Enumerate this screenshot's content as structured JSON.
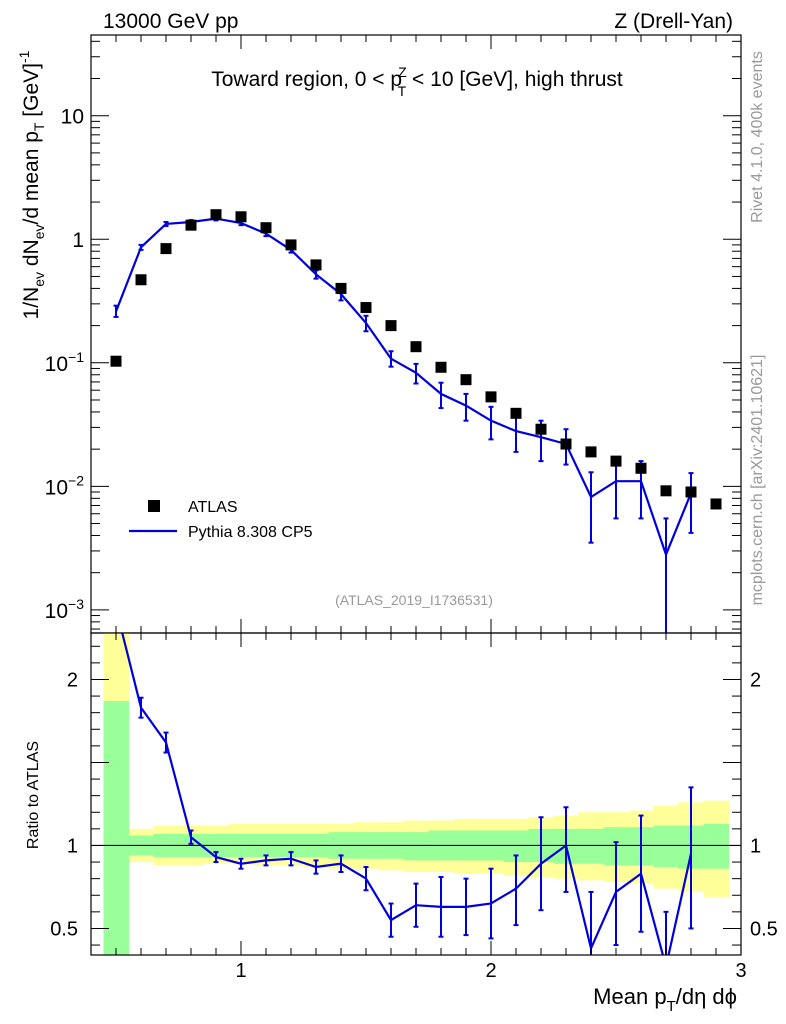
{
  "header": {
    "energy_label": "13000 GeV pp",
    "process_label": "Z (Drell-Yan)"
  },
  "side_labels": {
    "rivet": "Rivet 4.1.0,  400k events",
    "mcplots": "mcplots.cern.ch [arXiv:2401.10621]"
  },
  "colors": {
    "data": "#000000",
    "mc": "#0000dd",
    "band_inner": "#99ff99",
    "band_outer": "#ffff99"
  },
  "chart_data": [
    {
      "type": "scatter",
      "title": {
        "prefix": "Toward region, 0 < p",
        "sup": "Z",
        "sub": "T",
        "suffix": " < 10 [GeV], high thrust"
      },
      "ylabel": {
        "p1": "1/N",
        "s1": "ev",
        "p2": " dN",
        "s2": "ev",
        "p3": "/d mean p",
        "s3": "T",
        "p4": " [GeV]",
        "sup": "-1"
      },
      "yscale": "log",
      "ylim": [
        0.00065,
        45
      ],
      "xlim": [
        0.4,
        3.0
      ],
      "y_ticks": [
        {
          "v": 10,
          "base": "10",
          "exp": ""
        },
        {
          "v": 1,
          "base": "1",
          "exp": ""
        },
        {
          "v": 0.1,
          "base": "10",
          "exp": "−1"
        },
        {
          "v": 0.01,
          "base": "10",
          "exp": "−2"
        },
        {
          "v": 0.001,
          "base": "10",
          "exp": "−3"
        }
      ],
      "legend": [
        {
          "label": "ATLAS",
          "marker": "square"
        },
        {
          "label": "Pythia 8.308 CP5",
          "marker": "line"
        }
      ],
      "watermark": "(ATLAS_2019_I1736531)",
      "series": [
        {
          "name": "ATLAS",
          "x": [
            0.5,
            0.6,
            0.7,
            0.8,
            0.9,
            1.0,
            1.1,
            1.2,
            1.3,
            1.4,
            1.5,
            1.6,
            1.7,
            1.8,
            1.9,
            2.0,
            2.1,
            2.2,
            2.3,
            2.4,
            2.5,
            2.6,
            2.7,
            2.8,
            2.9
          ],
          "y": [
            0.103,
            0.47,
            0.84,
            1.3,
            1.58,
            1.52,
            1.24,
            0.9,
            0.62,
            0.4,
            0.28,
            0.2,
            0.135,
            0.092,
            0.073,
            0.053,
            0.039,
            0.029,
            0.022,
            0.019,
            0.016,
            0.014,
            0.0092,
            0.009,
            0.0072
          ]
        },
        {
          "name": "Pythia 8.308 CP5",
          "x": [
            0.5,
            0.6,
            0.7,
            0.8,
            0.9,
            1.0,
            1.1,
            1.2,
            1.3,
            1.4,
            1.5,
            1.6,
            1.7,
            1.8,
            1.9,
            2.0,
            2.1,
            2.2,
            2.3,
            2.4,
            2.5,
            2.6,
            2.7,
            2.8
          ],
          "y": [
            0.26,
            0.86,
            1.33,
            1.38,
            1.47,
            1.35,
            1.11,
            0.82,
            0.52,
            0.36,
            0.21,
            0.108,
            0.083,
            0.056,
            0.045,
            0.034,
            0.028,
            0.025,
            0.022,
            0.0082,
            0.011,
            0.011,
            0.0028,
            0.0088
          ],
          "ylo": [
            0.235,
            0.82,
            1.28,
            1.33,
            1.42,
            1.3,
            1.06,
            0.78,
            0.48,
            0.32,
            0.18,
            0.093,
            0.068,
            0.043,
            0.034,
            0.024,
            0.019,
            0.016,
            0.015,
            0.0035,
            0.0055,
            0.0055,
            0.0006,
            0.0042
          ],
          "yhi": [
            0.29,
            0.9,
            1.38,
            1.43,
            1.52,
            1.4,
            1.16,
            0.86,
            0.56,
            0.4,
            0.24,
            0.124,
            0.098,
            0.069,
            0.056,
            0.044,
            0.037,
            0.034,
            0.029,
            0.013,
            0.016,
            0.016,
            0.0055,
            0.0128
          ]
        }
      ]
    },
    {
      "type": "line",
      "ylabel": "Ratio to ATLAS",
      "xlabel": {
        "p1": "Mean p",
        "s1": "T",
        "p2": "/dη dϕ"
      },
      "xlim": [
        0.4,
        3.0
      ],
      "ylim": [
        0.34,
        2.28
      ],
      "y_ticks": [
        {
          "v": 2,
          "label": "2"
        },
        {
          "v": 1,
          "label": "1"
        },
        {
          "v": 0.5,
          "label": "0.5"
        }
      ],
      "x_ticks": [
        {
          "v": 1,
          "label": "1"
        },
        {
          "v": 2,
          "label": "2"
        },
        {
          "v": 3,
          "label": "3"
        }
      ],
      "bands": {
        "edges": [
          0.45,
          0.55,
          0.65,
          0.75,
          0.85,
          0.95,
          1.05,
          1.15,
          1.25,
          1.35,
          1.45,
          1.55,
          1.65,
          1.75,
          1.85,
          1.95,
          2.05,
          2.15,
          2.25,
          2.35,
          2.45,
          2.55,
          2.65,
          2.75,
          2.85,
          2.95
        ],
        "outer_lo": [
          0.3,
          0.9,
          0.88,
          0.88,
          0.89,
          0.89,
          0.88,
          0.88,
          0.87,
          0.86,
          0.86,
          0.85,
          0.84,
          0.84,
          0.83,
          0.83,
          0.82,
          0.81,
          0.8,
          0.79,
          0.78,
          0.77,
          0.74,
          0.72,
          0.69
        ],
        "outer_hi": [
          2.5,
          1.1,
          1.12,
          1.12,
          1.12,
          1.13,
          1.13,
          1.13,
          1.13,
          1.13,
          1.14,
          1.14,
          1.15,
          1.15,
          1.16,
          1.16,
          1.16,
          1.17,
          1.18,
          1.2,
          1.2,
          1.21,
          1.24,
          1.26,
          1.27
        ],
        "inner_lo": [
          0.3,
          0.94,
          0.93,
          0.93,
          0.93,
          0.93,
          0.93,
          0.93,
          0.93,
          0.92,
          0.92,
          0.92,
          0.91,
          0.91,
          0.91,
          0.91,
          0.9,
          0.9,
          0.89,
          0.89,
          0.88,
          0.88,
          0.87,
          0.86,
          0.86
        ],
        "inner_hi": [
          1.87,
          1.06,
          1.07,
          1.07,
          1.07,
          1.07,
          1.07,
          1.07,
          1.07,
          1.08,
          1.08,
          1.08,
          1.08,
          1.09,
          1.09,
          1.09,
          1.09,
          1.1,
          1.1,
          1.1,
          1.11,
          1.11,
          1.12,
          1.12,
          1.13
        ]
      },
      "series": [
        {
          "name": "Pythia 8.308 CP5 / ATLAS",
          "x": [
            0.5,
            0.6,
            0.7,
            0.8,
            0.9,
            1.0,
            1.1,
            1.2,
            1.3,
            1.4,
            1.5,
            1.6,
            1.7,
            1.8,
            1.9,
            2.0,
            2.1,
            2.2,
            2.3,
            2.4,
            2.5,
            2.6,
            2.7,
            2.8
          ],
          "y": [
            2.43,
            1.83,
            1.62,
            1.05,
            0.93,
            0.89,
            0.91,
            0.92,
            0.87,
            0.89,
            0.8,
            0.55,
            0.64,
            0.63,
            0.63,
            0.65,
            0.74,
            0.89,
            1.0,
            0.38,
            0.72,
            0.83,
            0.27,
            0.95
          ],
          "ylo": [
            2.35,
            1.77,
            1.56,
            1.01,
            0.9,
            0.86,
            0.88,
            0.88,
            0.83,
            0.84,
            0.73,
            0.45,
            0.51,
            0.45,
            0.46,
            0.44,
            0.52,
            0.61,
            0.72,
            0.2,
            0.4,
            0.48,
            0.05,
            0.5
          ],
          "yhi": [
            2.5,
            1.89,
            1.68,
            1.09,
            0.96,
            0.92,
            0.94,
            0.96,
            0.91,
            0.94,
            0.87,
            0.65,
            0.77,
            0.81,
            0.8,
            0.86,
            0.94,
            1.17,
            1.23,
            0.72,
            1.02,
            1.18,
            0.6,
            1.35
          ]
        }
      ]
    }
  ]
}
